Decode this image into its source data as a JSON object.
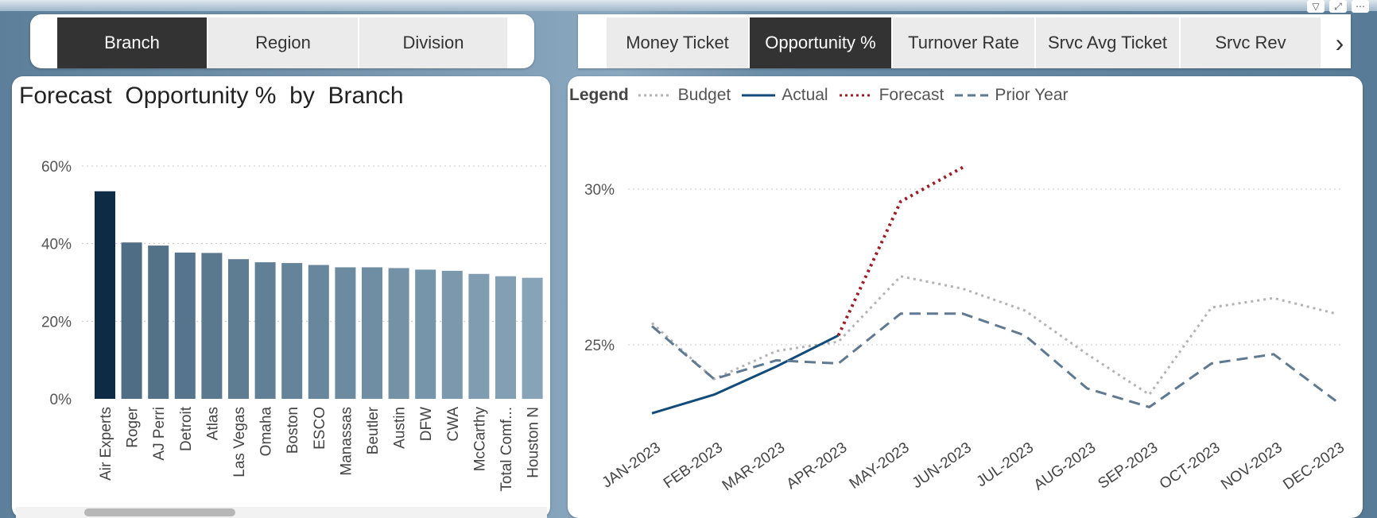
{
  "left_slicer": {
    "options": [
      {
        "label": "Branch",
        "selected": true
      },
      {
        "label": "Region",
        "selected": false
      },
      {
        "label": "Division",
        "selected": false
      }
    ]
  },
  "right_slicer": {
    "options": [
      {
        "label": "Money Ticket",
        "selected": false
      },
      {
        "label": "Opportunity %",
        "selected": true
      },
      {
        "label": "Turnover Rate",
        "selected": false
      },
      {
        "label": "Srvc Avg Ticket",
        "selected": false
      },
      {
        "label": "Srvc Rev",
        "selected": false
      }
    ],
    "next_icon": "chevron-right-icon"
  },
  "bar_chart": {
    "title": "Forecast  Opportunity %  by  Branch",
    "chart_data": {
      "type": "bar",
      "categories": [
        "Air Experts",
        "Roger",
        "AJ Perri",
        "Detroit",
        "Atlas",
        "Las Vegas",
        "Omaha",
        "Boston",
        "ESCO",
        "Manassas",
        "Beutler",
        "Austin",
        "DFW",
        "CWA",
        "McCarthy",
        "Total Comf...",
        "Houston N"
      ],
      "values": [
        53.5,
        40.3,
        39.5,
        37.7,
        37.6,
        36.0,
        35.2,
        35.0,
        34.5,
        33.9,
        33.9,
        33.7,
        33.3,
        33.0,
        32.2,
        31.6,
        31.2
      ],
      "yticks": [
        "0%",
        "20%",
        "40%",
        "60%"
      ],
      "ylim": [
        0,
        60
      ],
      "grid": true,
      "highlight_color": "#0d2b45",
      "bar_colors_start": "#4f6e85",
      "bar_colors_end": "#86a3b7"
    }
  },
  "line_chart": {
    "legend_title": "Legend",
    "chart_data": {
      "type": "line",
      "x": [
        "JAN-2023",
        "FEB-2023",
        "MAR-2023",
        "APR-2023",
        "MAY-2023",
        "JUN-2023",
        "JUL-2023",
        "AUG-2023",
        "SEP-2023",
        "OCT-2023",
        "NOV-2023",
        "DEC-2023"
      ],
      "yticks": [
        "25%",
        "30%"
      ],
      "ylim": [
        21.7,
        31.7
      ],
      "grid": true,
      "series": [
        {
          "name": "Budget",
          "color": "#b3b3b3",
          "style": "dotted",
          "values": [
            25.7,
            23.9,
            24.8,
            25.1,
            27.2,
            26.8,
            26.1,
            24.7,
            23.4,
            26.2,
            26.5,
            26.0
          ]
        },
        {
          "name": "Actual",
          "color": "#114b7a",
          "style": "solid",
          "values": [
            22.8,
            23.4,
            24.3,
            25.3,
            null,
            null,
            null,
            null,
            null,
            null,
            null,
            null
          ]
        },
        {
          "name": "Forecast",
          "color": "#9b1c24",
          "style": "dotted",
          "values": [
            null,
            null,
            null,
            25.3,
            29.6,
            30.7,
            null,
            null,
            null,
            null,
            null,
            null
          ]
        },
        {
          "name": "Prior Year",
          "color": "#5f7991",
          "style": "dashed",
          "values": [
            25.6,
            23.9,
            24.5,
            24.4,
            26.0,
            26.0,
            25.3,
            23.6,
            23.0,
            24.4,
            24.7,
            23.2
          ]
        }
      ]
    }
  }
}
